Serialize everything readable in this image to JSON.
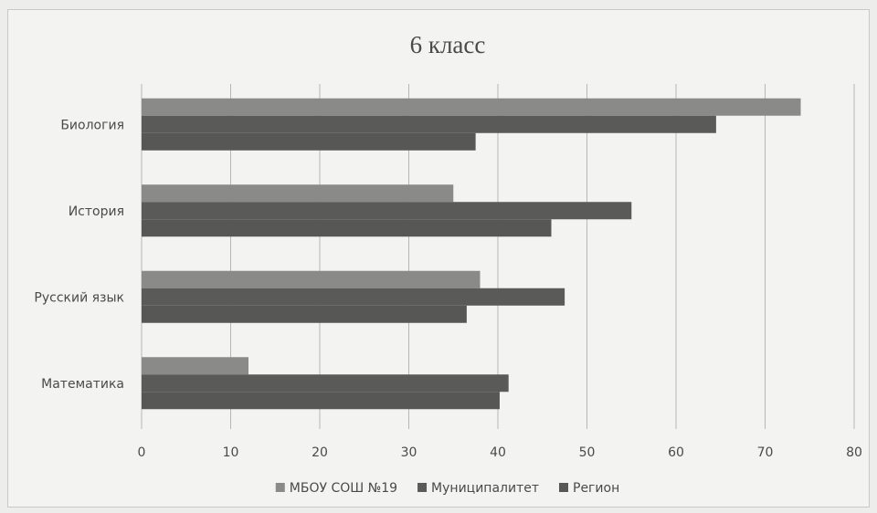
{
  "chart_data": {
    "type": "bar",
    "orientation": "horizontal",
    "title": "6 класс",
    "xlabel": "",
    "ylabel": "",
    "categories": [
      "Биология",
      "История",
      "Русский язык",
      "Математика"
    ],
    "series": [
      {
        "name": "МБОУ СОШ №19",
        "color": "#8a8a88",
        "values": [
          74,
          35,
          38,
          12
        ]
      },
      {
        "name": "Муниципалитет",
        "color": "#5a5a58",
        "values": [
          64.5,
          55,
          47.5,
          41.2
        ]
      },
      {
        "name": "Регион",
        "color": "#575755",
        "values": [
          37.5,
          46,
          36.5,
          40.2
        ]
      }
    ],
    "xlim": [
      0,
      80
    ],
    "xticks": [
      0,
      10,
      20,
      30,
      40,
      50,
      60,
      70,
      80
    ],
    "grid": "vertical",
    "legend_position": "bottom"
  }
}
